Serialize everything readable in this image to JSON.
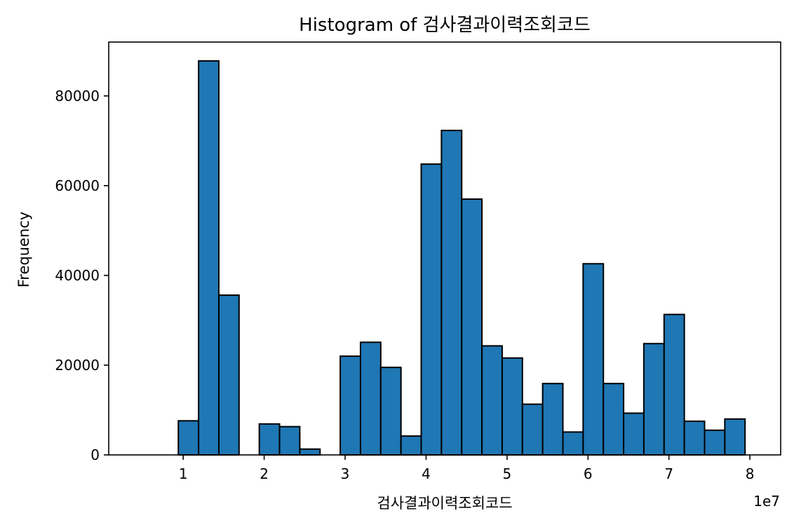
{
  "chart_data": {
    "type": "bar",
    "title": "Histogram of 검사결과이력조회코드",
    "xlabel": "검사결과이력조회코드",
    "ylabel": "Frequency",
    "x_offset_text": "1e7",
    "xlim": [
      0.08,
      8.38
    ],
    "ylim": [
      0,
      92000
    ],
    "x_ticks": [
      1,
      2,
      3,
      4,
      5,
      6,
      7,
      8
    ],
    "y_ticks": [
      0,
      20000,
      40000,
      60000,
      80000
    ],
    "bin_start": 0.94,
    "bin_width": 0.25,
    "values": [
      7600,
      87800,
      35600,
      0,
      6900,
      6300,
      1300,
      0,
      22000,
      25100,
      19500,
      4200,
      64800,
      72300,
      57000,
      24300,
      21600,
      11300,
      15900,
      5100,
      42600,
      15900,
      9300,
      24800,
      31300,
      7500,
      5500,
      8000
    ],
    "bar_color": "#1f77b4",
    "grid": false,
    "legend": "none"
  }
}
